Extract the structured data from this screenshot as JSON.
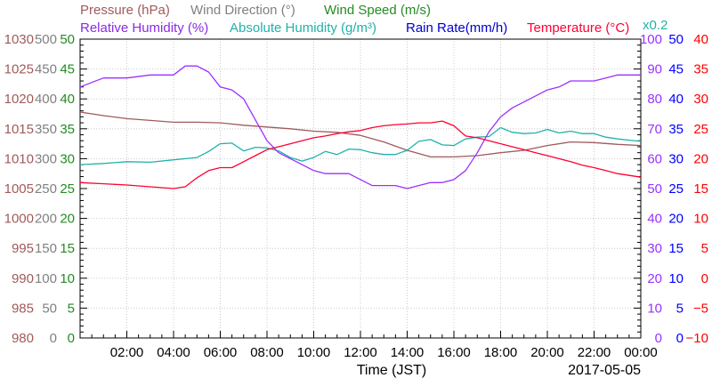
{
  "chart_data": {
    "type": "line",
    "date": "2017-05-05",
    "xlabel": "Time (JST)",
    "x_ticks": [
      "02:00",
      "04:00",
      "06:00",
      "08:00",
      "10:00",
      "12:00",
      "14:00",
      "16:00",
      "18:00",
      "20:00",
      "22:00",
      "00:00"
    ],
    "x_range_hours": [
      0,
      24
    ],
    "legend": [
      {
        "label": "Pressure (hPa)",
        "color": "#a05a5a"
      },
      {
        "label": "Wind Direction (°)",
        "color": "#808080"
      },
      {
        "label": "Wind Speed (m/s)",
        "color": "#228B22"
      },
      {
        "label": "Relative Humidity (%)",
        "color": "#8a2be2"
      },
      {
        "label": "Absolute Humidity (g/m³)",
        "color": "#20b2aa"
      },
      {
        "label": "Rain Rate(mm/h)",
        "color": "#0000cd"
      },
      {
        "label": "Temperature (°C)",
        "color": "#ff0033"
      },
      {
        "label": "x0.2",
        "color": "#20b2aa"
      }
    ],
    "left_axes": [
      {
        "name": "pressure",
        "color": "#a05a5a",
        "ticks": [
          "980",
          "985",
          "990",
          "995",
          "1000",
          "1005",
          "1010",
          "1015",
          "1020",
          "1025",
          "1030"
        ]
      },
      {
        "name": "wind_direction",
        "color": "#808080",
        "ticks": [
          "0",
          "50",
          "100",
          "150",
          "200",
          "250",
          "300",
          "350",
          "400",
          "450",
          "500"
        ]
      },
      {
        "name": "wind_speed",
        "color": "#228B22",
        "ticks": [
          "0",
          "5",
          "10",
          "15",
          "20",
          "25",
          "30",
          "35",
          "40",
          "45",
          "50"
        ]
      }
    ],
    "right_axes": [
      {
        "name": "relative_humidity",
        "color": "#9b30ff",
        "ticks": [
          "0",
          "10",
          "20",
          "30",
          "40",
          "50",
          "60",
          "70",
          "80",
          "90",
          "100"
        ]
      },
      {
        "name": "rain_rate",
        "color": "#0000ff",
        "ticks": [
          "0",
          "5",
          "10",
          "15",
          "20",
          "25",
          "30",
          "35",
          "40",
          "45",
          "50"
        ]
      },
      {
        "name": "temperature",
        "color": "#ff0000",
        "ticks": [
          "−10",
          "−5",
          "0",
          "5",
          "10",
          "15",
          "20",
          "25",
          "30",
          "35",
          "40"
        ]
      }
    ],
    "series": [
      {
        "name": "Pressure (hPa)",
        "color": "#a05a5a",
        "axis_min": 980,
        "axis_max": 1030,
        "points": [
          [
            0,
            1017.8
          ],
          [
            1,
            1017.2
          ],
          [
            2,
            1016.7
          ],
          [
            3,
            1016.4
          ],
          [
            4,
            1016.1
          ],
          [
            5,
            1016.1
          ],
          [
            6,
            1016.0
          ],
          [
            7,
            1015.6
          ],
          [
            8,
            1015.3
          ],
          [
            9,
            1015.0
          ],
          [
            10,
            1014.6
          ],
          [
            11,
            1014.4
          ],
          [
            12,
            1013.9
          ],
          [
            13,
            1012.8
          ],
          [
            14,
            1011.4
          ],
          [
            15,
            1010.3
          ],
          [
            16,
            1010.3
          ],
          [
            17,
            1010.5
          ],
          [
            18,
            1011.0
          ],
          [
            19,
            1011.4
          ],
          [
            20,
            1012.2
          ],
          [
            21,
            1012.8
          ],
          [
            22,
            1012.7
          ],
          [
            23,
            1012.4
          ],
          [
            24,
            1012.2
          ]
        ]
      },
      {
        "name": "Absolute Humidity (g/m³)",
        "color": "#20b2aa",
        "axis_min": 0,
        "axis_max": 50,
        "points": [
          [
            0,
            29.0
          ],
          [
            1,
            29.2
          ],
          [
            2,
            29.5
          ],
          [
            3,
            29.4
          ],
          [
            4,
            29.8
          ],
          [
            5,
            30.2
          ],
          [
            5.5,
            31.2
          ],
          [
            6,
            32.5
          ],
          [
            6.5,
            32.6
          ],
          [
            7,
            31.3
          ],
          [
            7.5,
            31.9
          ],
          [
            8,
            31.8
          ],
          [
            8.5,
            31.3
          ],
          [
            9,
            30.2
          ],
          [
            9.5,
            29.6
          ],
          [
            10,
            30.2
          ],
          [
            10.5,
            31.2
          ],
          [
            11,
            30.7
          ],
          [
            11.5,
            31.6
          ],
          [
            12,
            31.5
          ],
          [
            12.5,
            31.0
          ],
          [
            13,
            30.7
          ],
          [
            13.5,
            30.7
          ],
          [
            14,
            31.4
          ],
          [
            14.5,
            32.9
          ],
          [
            15,
            33.2
          ],
          [
            15.5,
            32.3
          ],
          [
            16,
            32.2
          ],
          [
            16.5,
            33.3
          ],
          [
            17,
            33.6
          ],
          [
            17.5,
            33.7
          ],
          [
            18,
            35.2
          ],
          [
            18.5,
            34.4
          ],
          [
            19,
            34.2
          ],
          [
            19.5,
            34.3
          ],
          [
            20,
            34.9
          ],
          [
            20.5,
            34.3
          ],
          [
            21,
            34.6
          ],
          [
            21.5,
            34.2
          ],
          [
            22,
            34.2
          ],
          [
            22.5,
            33.6
          ],
          [
            23,
            33.3
          ],
          [
            23.5,
            33.1
          ],
          [
            24,
            32.9
          ]
        ]
      },
      {
        "name": "Relative Humidity (%)",
        "color": "#9b30ff",
        "axis_min": 0,
        "axis_max": 100,
        "points": [
          [
            0,
            84
          ],
          [
            0.5,
            85.5
          ],
          [
            1,
            87
          ],
          [
            2,
            87
          ],
          [
            3,
            88
          ],
          [
            4,
            88
          ],
          [
            4.5,
            91
          ],
          [
            5,
            91
          ],
          [
            5.5,
            89
          ],
          [
            6,
            84
          ],
          [
            6.5,
            83
          ],
          [
            7,
            80
          ],
          [
            7.5,
            73
          ],
          [
            8,
            66
          ],
          [
            8.5,
            62
          ],
          [
            9,
            60
          ],
          [
            9.5,
            58
          ],
          [
            10,
            56
          ],
          [
            10.5,
            55
          ],
          [
            11,
            55
          ],
          [
            11.5,
            55
          ],
          [
            12,
            53
          ],
          [
            12.5,
            51
          ],
          [
            13,
            51
          ],
          [
            13.5,
            51
          ],
          [
            14,
            50
          ],
          [
            14.5,
            51
          ],
          [
            15,
            52
          ],
          [
            15.5,
            52
          ],
          [
            16,
            53
          ],
          [
            16.5,
            56
          ],
          [
            17,
            62
          ],
          [
            17.5,
            69
          ],
          [
            18,
            74
          ],
          [
            18.5,
            77
          ],
          [
            19,
            79
          ],
          [
            19.5,
            81
          ],
          [
            20,
            83
          ],
          [
            20.5,
            84
          ],
          [
            21,
            86
          ],
          [
            21.5,
            86
          ],
          [
            22,
            86
          ],
          [
            22.5,
            87
          ],
          [
            23,
            88
          ],
          [
            23.5,
            88
          ],
          [
            24,
            88
          ]
        ]
      },
      {
        "name": "Temperature (°C)",
        "color": "#ff0033",
        "axis_min": -10,
        "axis_max": 40,
        "points": [
          [
            0,
            16.0
          ],
          [
            1,
            15.8
          ],
          [
            2,
            15.6
          ],
          [
            3,
            15.3
          ],
          [
            4,
            15.0
          ],
          [
            4.5,
            15.3
          ],
          [
            5,
            16.8
          ],
          [
            5.5,
            18.0
          ],
          [
            6,
            18.5
          ],
          [
            6.5,
            18.5
          ],
          [
            7,
            19.5
          ],
          [
            7.5,
            20.5
          ],
          [
            8,
            21.5
          ],
          [
            8.5,
            22.0
          ],
          [
            9,
            22.5
          ],
          [
            9.5,
            23.0
          ],
          [
            10,
            23.5
          ],
          [
            10.5,
            23.8
          ],
          [
            11,
            24.2
          ],
          [
            11.5,
            24.5
          ],
          [
            12,
            24.7
          ],
          [
            12.5,
            25.2
          ],
          [
            13,
            25.5
          ],
          [
            13.5,
            25.7
          ],
          [
            14,
            25.8
          ],
          [
            14.5,
            26.0
          ],
          [
            15,
            26.0
          ],
          [
            15.5,
            26.3
          ],
          [
            16,
            25.5
          ],
          [
            16.5,
            23.8
          ],
          [
            17,
            23.5
          ],
          [
            17.5,
            23.0
          ],
          [
            18,
            22.5
          ],
          [
            18.5,
            22.0
          ],
          [
            19,
            21.5
          ],
          [
            19.5,
            21.0
          ],
          [
            20,
            20.5
          ],
          [
            20.5,
            20.0
          ],
          [
            21,
            19.5
          ],
          [
            21.5,
            18.9
          ],
          [
            22,
            18.5
          ],
          [
            22.5,
            18.0
          ],
          [
            23,
            17.5
          ],
          [
            23.5,
            17.2
          ],
          [
            24,
            16.9
          ]
        ]
      }
    ]
  }
}
